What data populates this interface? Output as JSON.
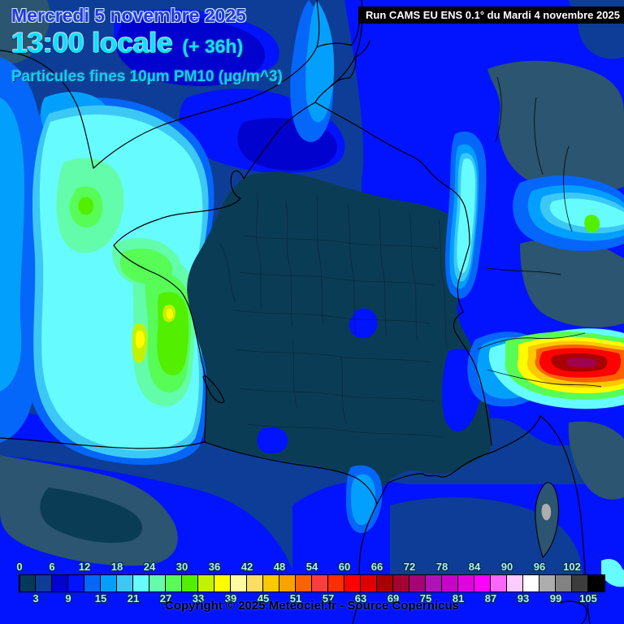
{
  "header": {
    "date_line": "Mercredi 5 novembre 2025",
    "time_line": "13:00 locale",
    "time_offset": "(+ 36h)",
    "parameter": "Particules fines 10µm PM10 (µg/m^3)",
    "run_label": "Run CAMS EU ENS 0.1° du Mardi 4 novembre 2025"
  },
  "map": {
    "region": "France and surroundings",
    "colors": {
      "sea_base": "#0d3d96",
      "sea_royal": "#0213fe",
      "land_low": "#0b3c55",
      "land_low_alt": "#2b5570",
      "hotspot_core": "#a0024d"
    }
  },
  "legend": {
    "step": 3,
    "top_labels": [
      "0",
      "6",
      "12",
      "18",
      "24",
      "30",
      "36",
      "42",
      "48",
      "54",
      "60",
      "66",
      "72",
      "78",
      "84",
      "90",
      "96",
      "102"
    ],
    "bottom_labels": [
      "3",
      "9",
      "15",
      "21",
      "27",
      "33",
      "39",
      "45",
      "51",
      "57",
      "63",
      "69",
      "75",
      "81",
      "87",
      "93",
      "99",
      "105"
    ],
    "cell_colors": [
      "#04395c",
      "#0d3d96",
      "#0202cf",
      "#0213fe",
      "#0566fa",
      "#02a0fc",
      "#3cc8f5",
      "#66fcff",
      "#63fcab",
      "#57fc57",
      "#52ef00",
      "#c3f200",
      "#fffc00",
      "#fcfc9e",
      "#fade62",
      "#fcc800",
      "#fca200",
      "#fc6202",
      "#fc3d3d",
      "#fe2e00",
      "#fc0202",
      "#dd0202",
      "#a80202",
      "#a50233",
      "#a80277",
      "#b011b8",
      "#c902c9",
      "#e002e0",
      "#fc02fc",
      "#fc66fc",
      "#fcccfc",
      "#ffffff",
      "#adadad",
      "#828282",
      "#3d3d3d",
      "#000000"
    ]
  },
  "footer": {
    "copyright": "Copyright © 2025 Meteociel.fr - Source Copernicus"
  }
}
